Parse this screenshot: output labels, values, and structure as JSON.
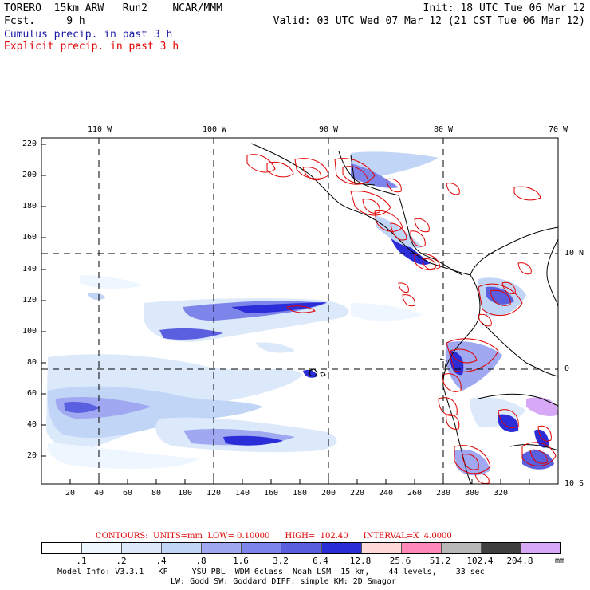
{
  "header": {
    "left_line1": "TORERO  15km ARW   Run2    NCAR/MMM",
    "left_line2": "Fcst.     9 h",
    "right_line1": "Init: 18 UTC Tue 06 Mar 12",
    "right_line2": "Valid: 03 UTC Wed 07 Mar 12 (21 CST Tue 06 Mar 12)",
    "legend_cumulus": "Cumulus precip. in past 3 h",
    "legend_explicit": "Explicit precip. in past 3 h"
  },
  "map": {
    "top_lon_labels": [
      "110 W",
      "100 W",
      "90 W",
      "80 W",
      "70 W"
    ],
    "right_lat_labels": [
      "10 N",
      "0",
      "10 S"
    ],
    "y_ticks": [
      "20",
      "40",
      "60",
      "80",
      "100",
      "120",
      "140",
      "160",
      "180",
      "200",
      "220"
    ],
    "x_ticks": [
      "20",
      "40",
      "60",
      "80",
      "100",
      "120",
      "140",
      "160",
      "180",
      "200",
      "220",
      "240",
      "260",
      "280",
      "300",
      "320"
    ],
    "colors": {
      "coast": "#000000",
      "grid": "#000000",
      "explicit_contour": "#e00000",
      "precip_levels": [
        "#ffffff",
        "#eef6ff",
        "#dbe9fb",
        "#c1d5f6",
        "#9fa8f0",
        "#7d84ea",
        "#5a5fe0",
        "#2b2ed8",
        "#ffd8d8",
        "#ff88b8",
        "#b8b8b8",
        "#404040",
        "#d7a8f5"
      ]
    }
  },
  "contour_info": {
    "contours_label": "CONTOURS:",
    "units": "UNITS=mm",
    "low": "LOW= 0.10000",
    "high": "HIGH=  102.40",
    "interval": "INTERVAL=X  4.0000"
  },
  "colorbar": {
    "labels": [
      ".1",
      ".2",
      ".4",
      ".8",
      "1.6",
      "3.2",
      "6.4",
      "12.8",
      "25.6",
      "51.2",
      "102.4",
      "204.8"
    ],
    "unit": "mm"
  },
  "footer": {
    "line1": "Model Info: V3.3.1   KF     YSU PBL  WDM 6class  Noah LSM  15 km,    44 levels,    33 sec",
    "line2": "LW: Godd SW: Goddard DIFF: simple KM: 2D Smagor"
  }
}
